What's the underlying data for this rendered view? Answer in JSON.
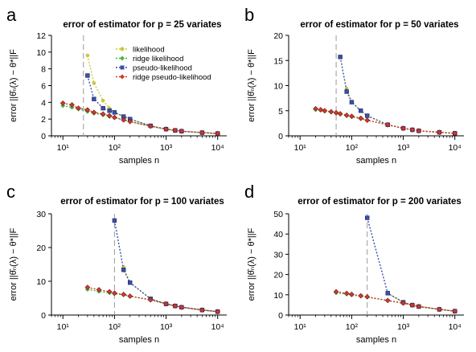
{
  "colors": {
    "likelihood": "#c8c83a",
    "ridge_likelihood": "#48b848",
    "pseudo_likelihood": "#3a4fa8",
    "ridge_pseudo_likelihood": "#cc3a30",
    "vline": "#999999",
    "axis": "#000000"
  },
  "chart_data": [
    {
      "type": "line",
      "panel": "a",
      "title": "error of estimator for p = 25 variates",
      "xlabel": "samples n",
      "ylabel": "error ||θ̂ₙ(λ) − θ*||F",
      "xscale": "log",
      "xlim": [
        6,
        15000
      ],
      "ylim": [
        0,
        12
      ],
      "yticks": [
        0,
        2,
        4,
        6,
        8,
        10,
        12
      ],
      "xticks": [
        10,
        100,
        1000,
        10000
      ],
      "xtick_labels": [
        "10¹",
        "10²",
        "10³",
        "10⁴"
      ],
      "vline": 25,
      "legend": {
        "placement": "top-right"
      },
      "series": [
        {
          "key": "likelihood",
          "name": "likelihood",
          "x": [
            30,
            40,
            60,
            80,
            100,
            150,
            200,
            500,
            1000,
            1500,
            2000,
            5000,
            10000
          ],
          "y": [
            9.6,
            6.3,
            4.2,
            3.3,
            2.8,
            2.3,
            2.0,
            1.2,
            0.8,
            0.65,
            0.55,
            0.38,
            0.28
          ]
        },
        {
          "key": "ridge_likelihood",
          "name": "ridge likelihood",
          "x": [
            10,
            15,
            20,
            30,
            40,
            60,
            80,
            100,
            150,
            200,
            500,
            1000,
            1500,
            2000,
            5000,
            10000
          ],
          "y": [
            3.6,
            3.4,
            3.2,
            2.9,
            2.7,
            2.5,
            2.3,
            2.2,
            1.9,
            1.7,
            1.15,
            0.8,
            0.65,
            0.55,
            0.38,
            0.28
          ]
        },
        {
          "key": "pseudo_likelihood",
          "name": "pseudo-likelihood",
          "x": [
            30,
            40,
            60,
            80,
            100,
            150,
            200,
            500,
            1000,
            1500,
            2000,
            5000,
            10000
          ],
          "y": [
            7.2,
            4.4,
            3.3,
            3.0,
            2.8,
            2.3,
            2.0,
            1.2,
            0.8,
            0.65,
            0.55,
            0.38,
            0.28
          ]
        },
        {
          "key": "ridge_pseudo_likelihood",
          "name": "ridge pseudo-likelihood",
          "x": [
            10,
            15,
            20,
            30,
            40,
            60,
            80,
            100,
            150,
            200,
            500,
            1000,
            1500,
            2000,
            5000,
            10000
          ],
          "y": [
            3.9,
            3.7,
            3.3,
            3.1,
            2.8,
            2.6,
            2.4,
            2.2,
            1.9,
            1.7,
            1.15,
            0.8,
            0.65,
            0.55,
            0.38,
            0.28
          ]
        }
      ]
    },
    {
      "type": "line",
      "panel": "b",
      "title": "error of estimator for p = 50 variates",
      "xlabel": "samples n",
      "ylabel": "error ||θ̂ₙ(λ) − θ*||F",
      "xscale": "log",
      "xlim": [
        6,
        15000
      ],
      "ylim": [
        0,
        20
      ],
      "yticks": [
        0,
        5,
        10,
        15,
        20
      ],
      "xticks": [
        10,
        100,
        1000,
        10000
      ],
      "xtick_labels": [
        "10¹",
        "10²",
        "10³",
        "10⁴"
      ],
      "vline": 50,
      "series": [
        {
          "key": "likelihood",
          "name": "likelihood",
          "x": [
            80,
            100,
            150,
            200,
            500,
            1000,
            1500,
            2000,
            5000,
            10000
          ],
          "y": [
            9.4,
            6.8,
            5.0,
            4.0,
            2.2,
            1.5,
            1.2,
            1.0,
            0.7,
            0.5
          ]
        },
        {
          "key": "ridge_likelihood",
          "name": "ridge likelihood",
          "x": [
            20,
            25,
            30,
            40,
            50,
            60,
            80,
            100,
            150,
            200,
            500,
            1000,
            1500,
            2000,
            5000,
            10000
          ],
          "y": [
            5.2,
            5.1,
            4.9,
            4.7,
            4.5,
            4.3,
            4.0,
            3.8,
            3.4,
            3.1,
            2.2,
            1.5,
            1.2,
            1.0,
            0.7,
            0.5
          ]
        },
        {
          "key": "pseudo_likelihood",
          "name": "pseudo-likelihood",
          "x": [
            60,
            80,
            100,
            150,
            200,
            500,
            1000,
            1500,
            2000,
            5000,
            10000
          ],
          "y": [
            15.7,
            8.8,
            6.7,
            5.0,
            4.0,
            2.2,
            1.5,
            1.2,
            1.0,
            0.7,
            0.5
          ]
        },
        {
          "key": "ridge_pseudo_likelihood",
          "name": "ridge pseudo-likelihood",
          "x": [
            20,
            25,
            30,
            40,
            50,
            60,
            80,
            100,
            150,
            200,
            500,
            1000,
            1500,
            2000,
            5000,
            10000
          ],
          "y": [
            5.4,
            5.2,
            5.0,
            4.8,
            4.6,
            4.4,
            4.1,
            3.9,
            3.5,
            3.1,
            2.2,
            1.5,
            1.2,
            1.0,
            0.7,
            0.5
          ]
        }
      ]
    },
    {
      "type": "line",
      "panel": "c",
      "title": "error of estimator for p = 100 variates",
      "xlabel": "samples n",
      "ylabel": "error ||θ̂ₙ(λ) − θ*||F",
      "xscale": "log",
      "xlim": [
        6,
        15000
      ],
      "ylim": [
        0,
        30
      ],
      "yticks": [
        0,
        10,
        20,
        30
      ],
      "xticks": [
        10,
        100,
        1000,
        10000
      ],
      "xtick_labels": [
        "10¹",
        "10²",
        "10³",
        "10⁴"
      ],
      "vline": 100,
      "series": [
        {
          "key": "likelihood",
          "name": "likelihood",
          "x": [
            150,
            200,
            500,
            1000,
            1500,
            2000,
            5000,
            10000
          ],
          "y": [
            14.2,
            9.6,
            4.8,
            3.3,
            2.7,
            2.3,
            1.5,
            1.0
          ]
        },
        {
          "key": "ridge_likelihood",
          "name": "ridge likelihood",
          "x": [
            30,
            50,
            80,
            100,
            150,
            200,
            500,
            1000,
            1500,
            2000,
            5000,
            10000
          ],
          "y": [
            7.6,
            7.0,
            6.6,
            6.3,
            6.0,
            5.6,
            4.5,
            3.3,
            2.7,
            2.3,
            1.5,
            1.0
          ]
        },
        {
          "key": "pseudo_likelihood",
          "name": "pseudo-likelihood",
          "x": [
            100,
            150,
            200,
            500,
            1000,
            1500,
            2000,
            5000,
            10000
          ],
          "y": [
            28.0,
            13.4,
            9.6,
            4.8,
            3.3,
            2.7,
            2.3,
            1.5,
            1.0
          ]
        },
        {
          "key": "ridge_pseudo_likelihood",
          "name": "ridge pseudo-likelihood",
          "x": [
            30,
            50,
            80,
            100,
            150,
            200,
            500,
            1000,
            1500,
            2000,
            5000,
            10000
          ],
          "y": [
            8.2,
            7.5,
            6.9,
            6.5,
            6.1,
            5.6,
            4.5,
            3.3,
            2.7,
            2.3,
            1.5,
            1.0
          ]
        }
      ]
    },
    {
      "type": "line",
      "panel": "d",
      "title": "error of estimator for p = 200 variates",
      "xlabel": "samples n",
      "ylabel": "error ||θ̂ₙ(λ) − θ*||F",
      "xscale": "log",
      "xlim": [
        6,
        15000
      ],
      "ylim": [
        0,
        50
      ],
      "yticks": [
        0,
        10,
        20,
        30,
        40,
        50
      ],
      "xticks": [
        10,
        100,
        1000,
        10000
      ],
      "xtick_labels": [
        "10¹",
        "10²",
        "10³",
        "10⁴"
      ],
      "vline": 200,
      "series": [
        {
          "key": "likelihood",
          "name": "likelihood",
          "x": [
            500,
            1000,
            1500,
            2000,
            5000,
            10000
          ],
          "y": [
            10.6,
            6.3,
            4.9,
            4.2,
            2.8,
            1.9
          ]
        },
        {
          "key": "ridge_likelihood",
          "name": "ridge likelihood",
          "x": [
            50,
            80,
            100,
            150,
            200,
            500,
            1000,
            1500,
            2000,
            5000,
            10000
          ],
          "y": [
            11.0,
            10.3,
            9.9,
            9.3,
            8.8,
            7.1,
            5.8,
            4.9,
            4.2,
            2.8,
            1.9
          ]
        },
        {
          "key": "pseudo_likelihood",
          "name": "pseudo-likelihood",
          "x": [
            200,
            500,
            1000,
            1500,
            2000,
            5000,
            10000
          ],
          "y": [
            48.0,
            10.8,
            6.3,
            4.9,
            4.2,
            2.8,
            1.9
          ]
        },
        {
          "key": "ridge_pseudo_likelihood",
          "name": "ridge pseudo-likelihood",
          "x": [
            50,
            80,
            100,
            150,
            200,
            500,
            1000,
            1500,
            2000,
            5000,
            10000
          ],
          "y": [
            11.5,
            10.7,
            10.2,
            9.5,
            9.0,
            7.2,
            5.9,
            4.9,
            4.2,
            2.8,
            1.9
          ]
        }
      ]
    }
  ]
}
